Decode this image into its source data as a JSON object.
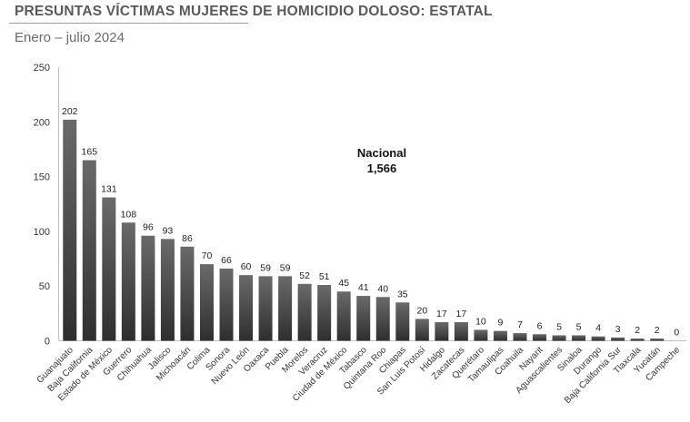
{
  "header": {
    "title": "PRESUNTAS VÍCTIMAS MUJERES DE HOMICIDIO DOLOSO: ESTATAL",
    "subtitle": "Enero – julio 2024"
  },
  "annotation": {
    "label": "Nacional",
    "value": "1,566"
  },
  "colors": {
    "bar_top": "#6a6a6a",
    "bar_bottom": "#2e2e2e",
    "title_rule": "#b89a6a"
  },
  "chart_data": {
    "type": "bar",
    "title": "PRESUNTAS VÍCTIMAS MUJERES DE HOMICIDIO DOLOSO: ESTATAL",
    "subtitle": "Enero – julio 2024",
    "xlabel": "",
    "ylabel": "",
    "ylim": [
      0,
      250
    ],
    "yticks": [
      0,
      50,
      100,
      150,
      200,
      250
    ],
    "grid": false,
    "legend": "none",
    "categories": [
      "Guanajuato",
      "Baja California",
      "Estado de México",
      "Guerrero",
      "Chihuahua",
      "Jalisco",
      "Michoacán",
      "Colima",
      "Sonora",
      "Nuevo León",
      "Oaxaca",
      "Puebla",
      "Morelos",
      "Veracruz",
      "Ciudad de México",
      "Tabasco",
      "Quintana Roo",
      "Chiapas",
      "San Luis Potosí",
      "Hidalgo",
      "Zacatecas",
      "Querétaro",
      "Tamaulipas",
      "Coahuila",
      "Nayarit",
      "Aguascalientes",
      "Sinaloa",
      "Durango",
      "Baja California Sur",
      "Tlaxcala",
      "Yucatán",
      "Campeche"
    ],
    "values": [
      202,
      165,
      131,
      108,
      96,
      93,
      86,
      70,
      66,
      60,
      59,
      59,
      52,
      51,
      45,
      41,
      40,
      35,
      20,
      17,
      17,
      10,
      9,
      7,
      6,
      5,
      5,
      4,
      3,
      2,
      2,
      0
    ]
  }
}
